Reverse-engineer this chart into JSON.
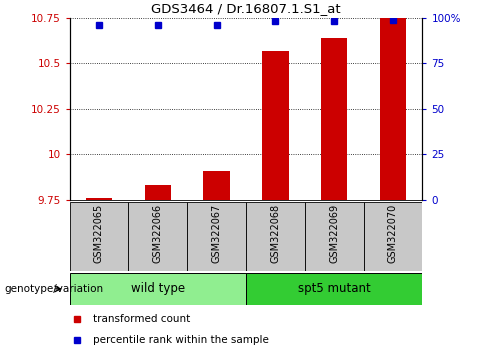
{
  "title": "GDS3464 / Dr.16807.1.S1_at",
  "samples": [
    "GSM322065",
    "GSM322066",
    "GSM322067",
    "GSM322068",
    "GSM322069",
    "GSM322070"
  ],
  "transformed_count": [
    9.76,
    9.83,
    9.91,
    10.57,
    10.64,
    10.75
  ],
  "percentile_rank": [
    96,
    96,
    96,
    98,
    98,
    99
  ],
  "ylim_left": [
    9.75,
    10.75
  ],
  "ylim_right": [
    0,
    100
  ],
  "yticks_left": [
    9.75,
    10.0,
    10.25,
    10.5,
    10.75
  ],
  "yticks_right": [
    0,
    25,
    50,
    75,
    100
  ],
  "ytick_labels_left": [
    "9.75",
    "10",
    "10.25",
    "10.5",
    "10.75"
  ],
  "ytick_labels_right": [
    "0",
    "25",
    "50",
    "75",
    "100%"
  ],
  "groups": [
    {
      "label": "wild type",
      "indices": [
        0,
        1,
        2
      ],
      "color": "#90EE90"
    },
    {
      "label": "spt5 mutant",
      "indices": [
        3,
        4,
        5
      ],
      "color": "#33CC33"
    }
  ],
  "bar_color": "#CC0000",
  "marker_color": "#0000CC",
  "bg_color_xtick": "#C8C8C8",
  "genotype_label": "genotype/variation",
  "legend_items": [
    {
      "color": "#CC0000",
      "label": "transformed count"
    },
    {
      "color": "#0000CC",
      "label": "percentile rank within the sample"
    }
  ]
}
